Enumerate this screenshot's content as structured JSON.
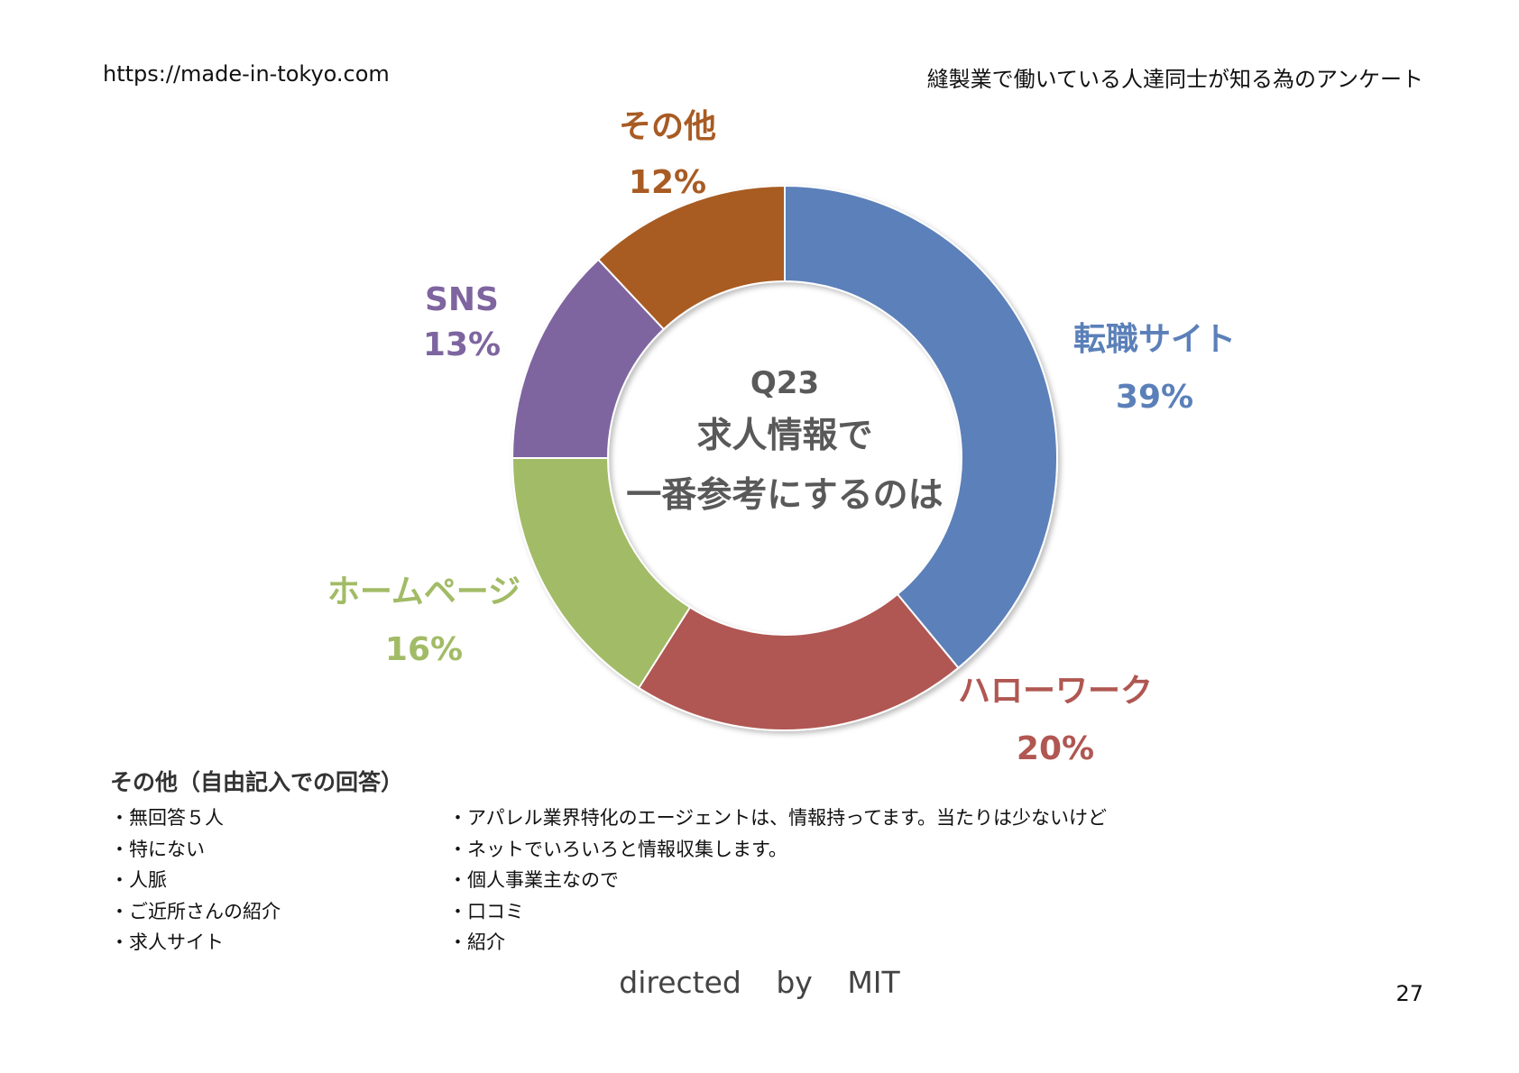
{
  "header": {
    "site_url": "https://made-in-tokyo.com",
    "survey_title": "縫製業で働いている人達同士が知る為のアンケート"
  },
  "chart_data": {
    "type": "pie",
    "title_lines": [
      "Q23",
      "求人情報で",
      "一番参考にするのは"
    ],
    "slices": [
      {
        "label": "転職サイト",
        "value": 39,
        "value_label": "39%",
        "color": "#5B80B9"
      },
      {
        "label": "ハローワーク",
        "value": 20,
        "value_label": "20%",
        "color": "#B05752"
      },
      {
        "label": "ホームページ",
        "value": 16,
        "value_label": "16%",
        "color": "#A2BB66"
      },
      {
        "label": "SNS",
        "value": 13,
        "value_label": "13%",
        "color": "#7E659F"
      },
      {
        "label": "その他",
        "value": 12,
        "value_label": "12%",
        "color": "#A85B23"
      }
    ],
    "legend": "none",
    "donut": true
  },
  "free_answers": {
    "heading": "その他（自由記入での回答）",
    "left": [
      "無回答５人",
      "特にない",
      "人脈",
      "ご近所さんの紹介",
      "求人サイト"
    ],
    "right": [
      "アパレル業界特化のエージェントは、情報持ってます。当たりは少ないけど",
      "ネットでいろいろと情報収集します。",
      "個人事業主なので",
      "口コミ",
      "紹介"
    ]
  },
  "footer": {
    "credit": "directed by MIT",
    "page_number": "27"
  }
}
